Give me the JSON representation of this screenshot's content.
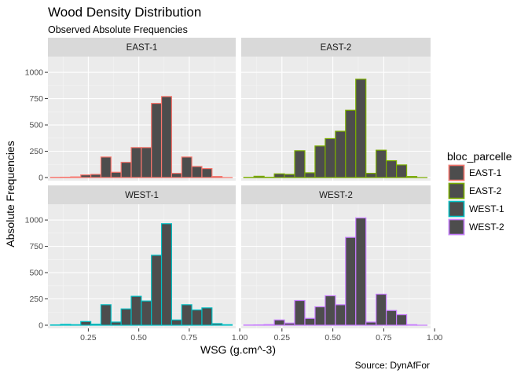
{
  "chart_data": {
    "type": "histogram",
    "title": "Wood Density Distribution",
    "subtitle": "Observed Absolute Frequencies",
    "caption": "Source: DynAfFor",
    "xlabel": "WSG (g.cm^-3)",
    "ylabel": "Absolute Frequencies",
    "xlim": [
      0.05,
      0.98
    ],
    "ylim": [
      -30,
      1150
    ],
    "x_ticks": [
      0.25,
      0.5,
      0.75,
      1.0
    ],
    "x_tick_labels": [
      "0.25",
      "0.50",
      "0.75",
      "1.00"
    ],
    "y_ticks": [
      0,
      250,
      500,
      750,
      1000
    ],
    "y_tick_labels": [
      "0",
      "250",
      "500",
      "750",
      "1000"
    ],
    "bin_centers": [
      0.0875,
      0.1375,
      0.1875,
      0.2375,
      0.2875,
      0.3375,
      0.3875,
      0.4375,
      0.4875,
      0.5375,
      0.5875,
      0.6375,
      0.6875,
      0.7375,
      0.7875,
      0.8375,
      0.8875,
      0.9375
    ],
    "bin_width": 0.05,
    "fill_color": "#4d4d4d",
    "grid": true,
    "legend": {
      "title": "bloc_parcelle",
      "position": "right",
      "items": [
        {
          "label": "EAST-1",
          "color": "#F8766D"
        },
        {
          "label": "EAST-2",
          "color": "#7CAE00"
        },
        {
          "label": "WEST-1",
          "color": "#00BFC4"
        },
        {
          "label": "WEST-2",
          "color": "#C77CFF"
        }
      ]
    },
    "panels": [
      {
        "name": "EAST-1",
        "color": "#F8766D",
        "values": [
          2,
          3,
          6,
          25,
          30,
          195,
          50,
          145,
          285,
          285,
          705,
          770,
          40,
          195,
          105,
          85,
          10,
          0
        ]
      },
      {
        "name": "EAST-2",
        "color": "#7CAE00",
        "values": [
          2,
          12,
          3,
          35,
          30,
          255,
          45,
          300,
          370,
          440,
          640,
          935,
          40,
          260,
          160,
          120,
          10,
          0
        ]
      },
      {
        "name": "WEST-1",
        "color": "#00BFC4",
        "values": [
          3,
          8,
          5,
          35,
          10,
          195,
          30,
          155,
          275,
          230,
          665,
          965,
          50,
          195,
          145,
          165,
          15,
          5
        ]
      },
      {
        "name": "WEST-2",
        "color": "#C77CFF",
        "values": [
          2,
          3,
          6,
          50,
          20,
          235,
          65,
          175,
          280,
          195,
          835,
          1020,
          30,
          295,
          140,
          100,
          5,
          0
        ]
      }
    ]
  }
}
